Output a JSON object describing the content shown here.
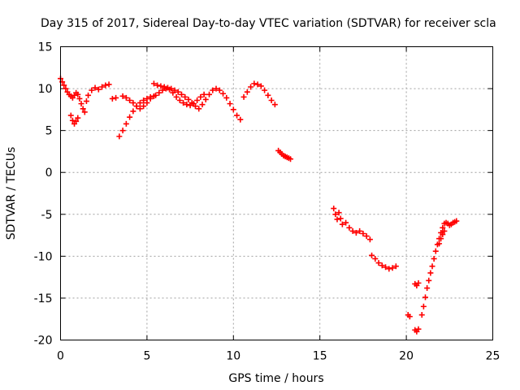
{
  "chart_data": {
    "type": "scatter",
    "title": "Day 315 of 2017, Sidereal Day-to-day VTEC variation (SDTVAR) for receiver scla",
    "xlabel": "GPS time / hours",
    "ylabel": "SDTVAR / TECUs",
    "xlim": [
      0,
      25
    ],
    "ylim": [
      -20,
      15
    ],
    "xticks": [
      0,
      5,
      10,
      15,
      20,
      25
    ],
    "yticks": [
      -20,
      -15,
      -10,
      -5,
      0,
      5,
      10,
      15
    ],
    "xtick_labels": [
      "0",
      "5",
      "10",
      "15",
      "20",
      "25"
    ],
    "ytick_labels": [
      "-20",
      "-15",
      "-10",
      "-5",
      "0",
      "5",
      "10",
      "15"
    ],
    "grid": true,
    "marker": "+",
    "color": "#ff0000",
    "series": [
      {
        "name": "scla",
        "x": [
          0.0,
          0.1,
          0.2,
          0.3,
          0.4,
          0.5,
          0.6,
          0.7,
          0.8,
          0.9,
          1.0,
          1.1,
          1.2,
          1.3,
          1.4,
          1.5,
          1.6,
          1.8,
          2.0,
          2.2,
          2.4,
          2.6,
          2.8,
          3.0,
          3.2,
          0.6,
          0.7,
          0.8,
          0.9,
          1.0,
          3.4,
          3.6,
          3.8,
          4.0,
          4.2,
          4.4,
          4.6,
          4.8,
          5.0,
          5.2,
          5.4,
          3.6,
          3.8,
          4.0,
          4.2,
          4.4,
          4.6,
          4.8,
          5.0,
          5.2,
          5.5,
          5.7,
          5.9,
          6.1,
          6.3,
          6.5,
          6.7,
          6.9,
          7.1,
          7.3,
          7.5,
          7.7,
          7.9,
          8.1,
          8.3,
          5.4,
          5.6,
          5.8,
          6.0,
          6.2,
          6.4,
          6.6,
          6.8,
          7.0,
          7.2,
          7.4,
          7.6,
          7.8,
          8.0,
          8.2,
          8.4,
          8.6,
          8.8,
          9.0,
          9.2,
          9.4,
          9.6,
          9.8,
          10.0,
          10.2,
          10.4,
          10.6,
          10.8,
          11.0,
          11.2,
          11.4,
          11.6,
          11.8,
          12.0,
          12.2,
          12.4,
          12.6,
          12.7,
          12.8,
          12.9,
          13.0,
          13.1,
          13.2,
          13.3,
          15.8,
          15.9,
          16.0,
          16.1,
          16.2,
          16.3,
          16.5,
          16.7,
          16.9,
          17.1,
          17.3,
          17.5,
          17.7,
          17.9,
          18.0,
          18.2,
          18.4,
          18.6,
          18.8,
          19.0,
          19.2,
          19.4,
          20.1,
          20.2,
          20.5,
          20.6,
          20.7,
          20.5,
          20.6,
          20.7,
          20.9,
          21.0,
          21.1,
          21.2,
          21.3,
          21.4,
          21.5,
          21.6,
          21.7,
          21.8,
          21.9,
          22.0,
          22.1,
          22.2,
          22.3,
          22.4,
          22.5,
          22.6,
          22.7,
          22.8,
          22.9,
          21.9,
          22.0,
          22.1,
          22.2
        ],
        "y": [
          11.2,
          10.8,
          10.4,
          10.0,
          9.6,
          9.3,
          9.1,
          8.9,
          9.2,
          9.5,
          9.3,
          8.8,
          8.2,
          7.6,
          7.2,
          8.5,
          9.2,
          9.8,
          10.1,
          9.9,
          10.2,
          10.4,
          10.5,
          8.8,
          8.9,
          6.8,
          6.2,
          5.8,
          6.1,
          6.5,
          4.3,
          5.0,
          5.8,
          6.6,
          7.3,
          7.9,
          8.3,
          8.6,
          8.8,
          9.0,
          9.1,
          9.1,
          8.9,
          8.6,
          8.3,
          7.9,
          7.6,
          7.9,
          8.3,
          8.8,
          9.2,
          9.5,
          9.8,
          10.0,
          9.9,
          9.5,
          9.0,
          8.6,
          8.3,
          8.1,
          8.0,
          8.2,
          8.6,
          9.0,
          9.3,
          10.6,
          10.4,
          10.3,
          10.2,
          10.1,
          10.0,
          9.8,
          9.6,
          9.3,
          9.0,
          8.7,
          8.3,
          7.9,
          7.6,
          8.1,
          8.7,
          9.3,
          9.8,
          10.0,
          9.8,
          9.4,
          8.9,
          8.2,
          7.5,
          6.8,
          6.3,
          9.0,
          9.6,
          10.2,
          10.6,
          10.5,
          10.3,
          9.8,
          9.2,
          8.6,
          8.1,
          2.6,
          2.4,
          2.2,
          2.0,
          1.9,
          1.8,
          1.7,
          1.6,
          -4.3,
          -5.0,
          -5.6,
          -4.8,
          -5.5,
          -6.2,
          -6.0,
          -6.6,
          -7.0,
          -7.2,
          -7.0,
          -7.3,
          -7.6,
          -8.0,
          -9.9,
          -10.3,
          -10.8,
          -11.1,
          -11.3,
          -11.5,
          -11.4,
          -11.2,
          -17.0,
          -17.2,
          -13.3,
          -13.5,
          -13.2,
          -18.8,
          -19.0,
          -18.7,
          -17.0,
          -16.0,
          -14.9,
          -13.8,
          -12.9,
          -12.0,
          -11.2,
          -10.3,
          -9.4,
          -8.6,
          -7.9,
          -7.2,
          -6.6,
          -6.1,
          -6.0,
          -6.1,
          -6.3,
          -6.2,
          -6.0,
          -5.9,
          -5.8,
          -8.5,
          -7.9,
          -7.4,
          -7.0
        ]
      }
    ]
  }
}
